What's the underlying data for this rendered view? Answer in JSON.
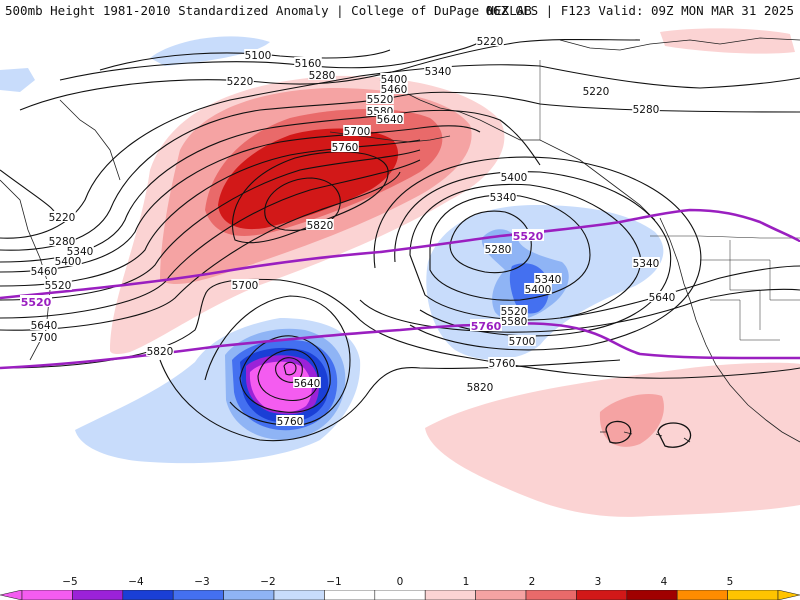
{
  "header": {
    "title_left": "500mb Height 1981-2010 Standardized Anomaly | College of DuPage NEXLAB",
    "title_right": "06Z GFS | F123 Valid: 09Z MON MAR 31 2025"
  },
  "map": {
    "contour_labels": [
      "5100",
      "5160",
      "5220",
      "5220",
      "5280",
      "5340",
      "5400",
      "5460",
      "5520",
      "5580",
      "5640",
      "5700",
      "5760",
      "5820",
      "5220",
      "5280",
      "5340",
      "5400",
      "5460",
      "5520",
      "5640",
      "5700",
      "5820",
      "5700",
      "5640",
      "5760",
      "5400",
      "5340",
      "5280",
      "5340",
      "5400",
      "5520",
      "5580",
      "5700",
      "5760",
      "5820",
      "5220",
      "5280",
      "5340",
      "5460",
      "5640"
    ],
    "highlight_labels": [
      "5520",
      "5520",
      "5760"
    ],
    "colors": {
      "neg_weak": "#c8dcfb",
      "neg_1": "#8fb4f5",
      "neg_2": "#4470f0",
      "neg_3": "#1a3fd6",
      "neg_4": "#9b22d8",
      "neg_5": "#f45cf0",
      "pos_weak": "#fbd3d3",
      "pos_1": "#f5a3a3",
      "pos_2": "#e96a6a",
      "pos_3": "#d21818",
      "highlight_contour": "#9a1fc0"
    }
  },
  "colorbar": {
    "ticks": [
      "−5",
      "−4",
      "−3",
      "−2",
      "−1",
      "0",
      "1",
      "2",
      "3",
      "4",
      "5"
    ],
    "colors": [
      "#f45cf0",
      "#9b22d8",
      "#1a3fd6",
      "#4470f0",
      "#8fb4f5",
      "#c8dcfb",
      "#ffffff",
      "#ffffff",
      "#fbd3d3",
      "#f5a3a3",
      "#e96a6a",
      "#d21818",
      "#a00000",
      "#ff8c00",
      "#ffc400"
    ]
  }
}
